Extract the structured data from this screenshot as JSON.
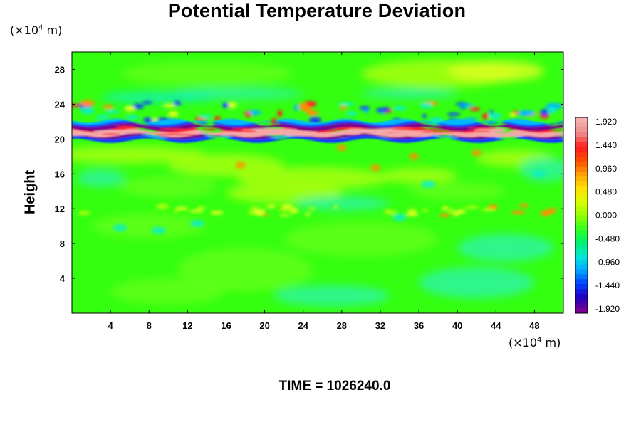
{
  "chart_data": {
    "type": "heatmap",
    "title": "Potential Temperature Deviation",
    "ylabel": "Height",
    "x_unit": {
      "prefix": "(×10",
      "exponent": "4",
      "suffix": " m)"
    },
    "y_unit": {
      "prefix": "(×10",
      "exponent": "4",
      "suffix": " m)"
    },
    "xlim": [
      0,
      51
    ],
    "ylim": [
      0,
      30
    ],
    "x_ticks": [
      "4",
      "8",
      "12",
      "16",
      "20",
      "24",
      "28",
      "32",
      "36",
      "40",
      "44",
      "48"
    ],
    "y_ticks": [
      "4",
      "8",
      "12",
      "16",
      "20",
      "24",
      "28"
    ],
    "colorbar": {
      "range": [
        -1.92,
        1.92
      ],
      "tick_labels": [
        "1.920",
        "1.440",
        "0.960",
        "0.480",
        "0.000",
        "-0.480",
        "-0.960",
        "-1.440",
        "-1.920"
      ],
      "colors": [
        "#7a0090",
        "#2000c0",
        "#0040ff",
        "#00a8ff",
        "#00e8d8",
        "#00f070",
        "#30ff20",
        "#90ff00",
        "#d8ff00",
        "#ffe000",
        "#ffa000",
        "#ff5000",
        "#ff1a1a",
        "#f08a8a",
        "#f4b0b0"
      ]
    },
    "field_description": [
      {
        "feature": "background",
        "value": 0.0
      },
      {
        "feature": "warm band",
        "height_range": [
          20.3,
          21.0
        ],
        "value": 1.92
      },
      {
        "feature": "cold band",
        "height_range": [
          21.0,
          21.8
        ],
        "value": -1.92
      },
      {
        "feature": "cold band",
        "height_range": [
          19.8,
          20.3
        ],
        "value": -1.92
      },
      {
        "feature": "wave layer",
        "height_range": [
          22.0,
          24.0
        ],
        "x_range": [
          0,
          51
        ]
      },
      {
        "feature": "warm patches near tropopause",
        "height_range": [
          11.0,
          12.5
        ],
        "value": 0.5
      },
      {
        "feature": "warm layer",
        "height_range": [
          26.0,
          29.0
        ],
        "x_range": [
          30,
          48
        ],
        "value": 0.48
      }
    ]
  },
  "time_label": "TIME = 1026240.0"
}
